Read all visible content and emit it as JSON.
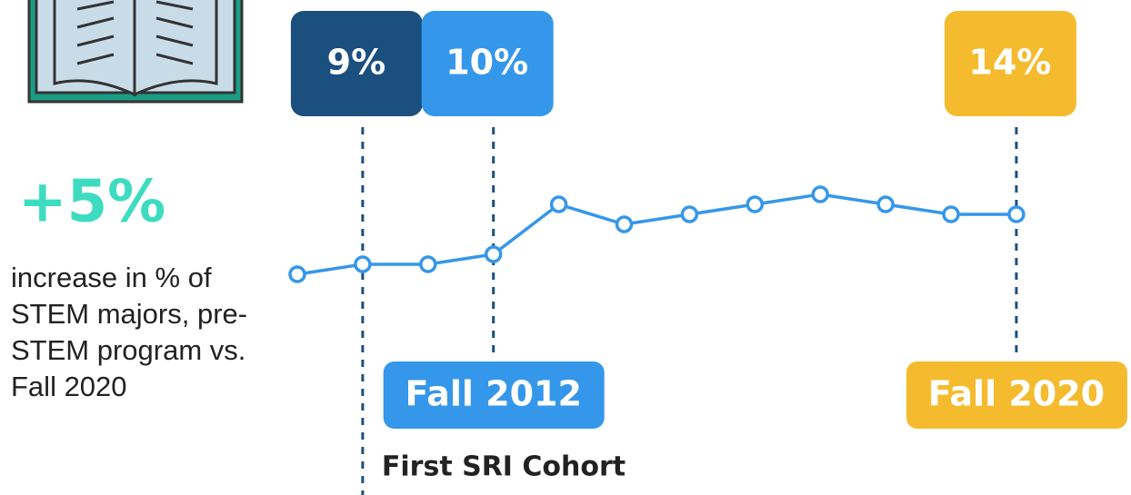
{
  "chart_data": {
    "type": "line",
    "headline": "+5%",
    "description": "increase in % of STEM majors, pre-STEM program vs. Fall 2020",
    "categories": [
      null,
      null,
      null,
      null,
      null,
      null,
      null,
      null,
      null,
      null,
      null,
      null
    ],
    "values": [
      8,
      9,
      9,
      10,
      15,
      13,
      14,
      15,
      16,
      15,
      14,
      14
    ],
    "value_labels": [
      null,
      "9%",
      null,
      "10%",
      null,
      null,
      null,
      null,
      null,
      null,
      null,
      "14%"
    ],
    "value_label_colors": [
      null,
      "#1b4f7e",
      null,
      "#3597e9",
      null,
      null,
      null,
      null,
      null,
      null,
      null,
      "#f5bb2e"
    ],
    "color": "#3597e9",
    "ylim": [
      0,
      20
    ],
    "annotations": [
      {
        "text": "Fall 2012",
        "point": 3,
        "color": "#3597e9"
      },
      {
        "text": "Fall 2020",
        "point": 11,
        "color": "#f5bb2e"
      },
      {
        "text": "First SRI Cohort",
        "point": 1
      }
    ]
  }
}
